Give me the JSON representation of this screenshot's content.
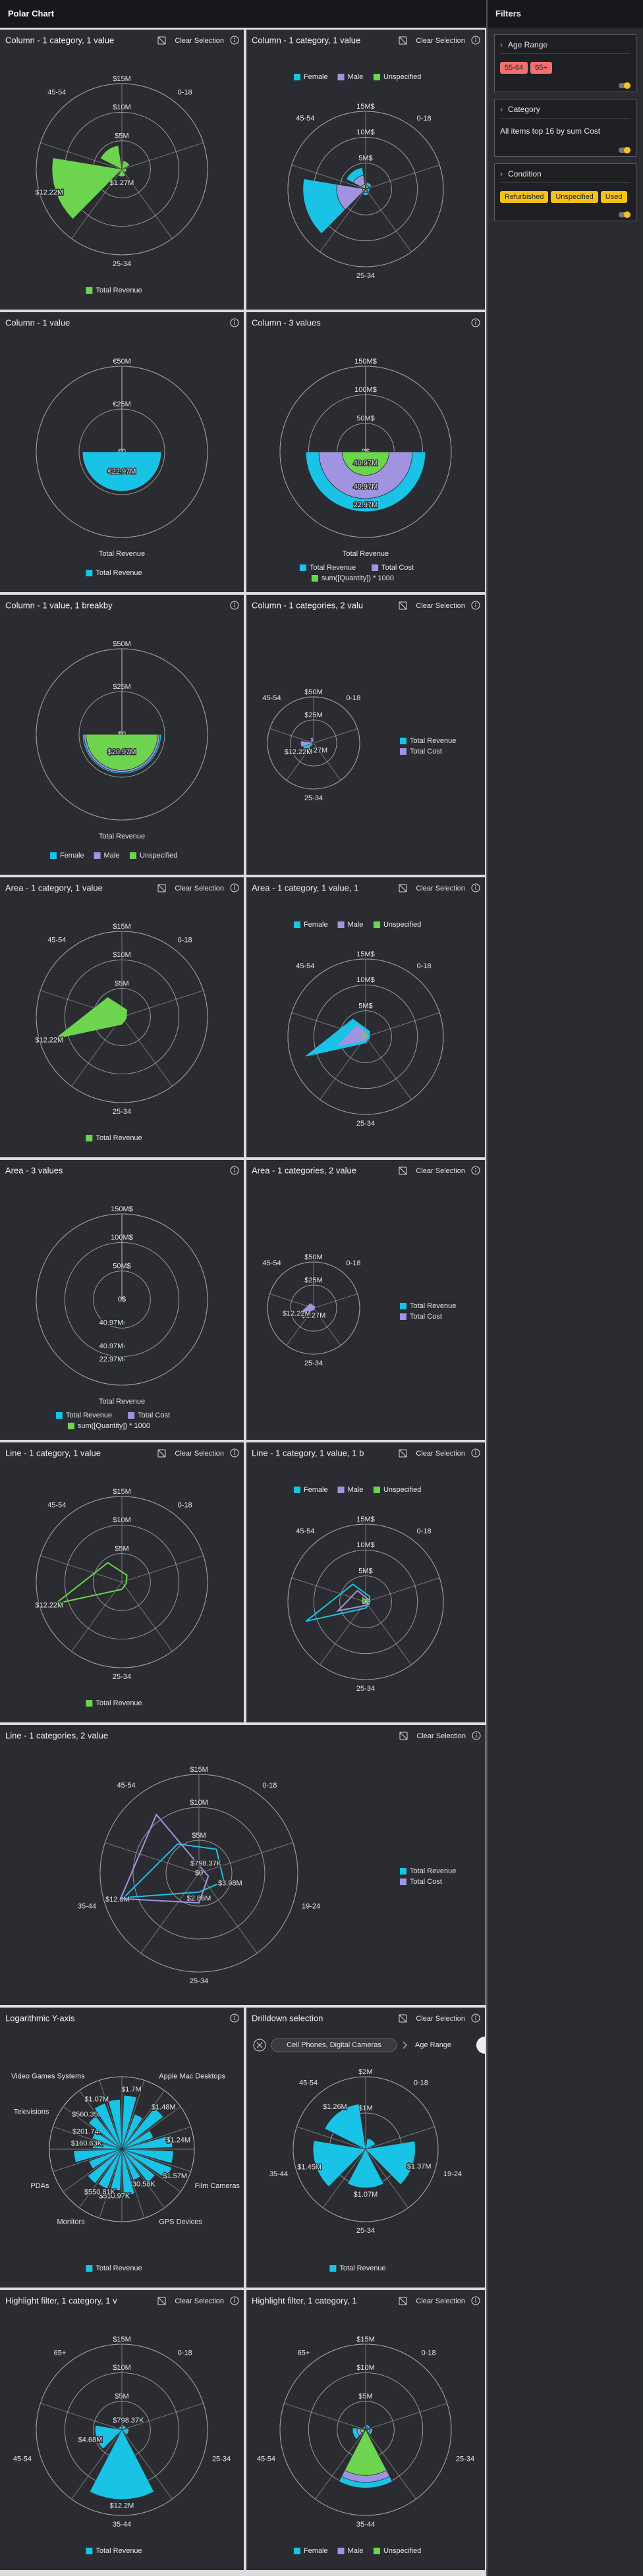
{
  "header": {
    "title": "Polar Chart"
  },
  "filters": {
    "title": "Filters",
    "panels": [
      {
        "title": "Age Range",
        "chips": [
          "55-64",
          "65+"
        ],
        "chip_color": "#f07070"
      },
      {
        "title": "Category",
        "text": "All items top 16 by sum Cost"
      },
      {
        "title": "Condition",
        "chips": [
          "Refurbished",
          "Unspecified",
          "Used"
        ],
        "chip_color": "#f5c21b"
      }
    ]
  },
  "chart_data": [
    {
      "type": "column",
      "title": "Column - 1 category, 1 value",
      "clear_selection": "Clear Selection",
      "categories": [
        "0-18",
        null,
        "25-34",
        null,
        "45-54"
      ],
      "series": [
        {
          "name": "Total Revenue",
          "color": "#6cd44f",
          "values": [
            1500000,
            800000,
            1270000,
            12220000,
            4200000
          ],
          "value_labels": [
            null,
            null,
            "$1.27M",
            "$12.22M",
            null
          ]
        }
      ],
      "ylim": [
        0,
        15000000
      ],
      "yticks": [
        {
          "value": 5000000,
          "label": "$5M"
        },
        {
          "value": 10000000,
          "label": "$10M"
        },
        {
          "value": 15000000,
          "label": "$15M"
        }
      ],
      "legend": "bottom"
    },
    {
      "type": "column",
      "stacked": true,
      "title": "Column - 1 category, 1 value",
      "clear_selection": "Clear Selection",
      "categories": [
        "0-18",
        null,
        "25-34",
        null,
        "45-54"
      ],
      "series": [
        {
          "name": "Female",
          "color": "#19c3e6",
          "values": [
            600000,
            400000,
            500000,
            6500000,
            1500000
          ]
        },
        {
          "name": "Male",
          "color": "#a094e0",
          "values": [
            500000,
            300000,
            500000,
            5000000,
            1800000
          ]
        },
        {
          "name": "Unspecified",
          "color": "#6cd44f",
          "values": [
            200000,
            100000,
            200000,
            600000,
            900000
          ]
        }
      ],
      "ylim": [
        0,
        15000000
      ],
      "yticks": [
        {
          "value": 0,
          "label": "0$"
        },
        {
          "value": 5000000,
          "label": "5M$"
        },
        {
          "value": 10000000,
          "label": "10M$"
        },
        {
          "value": 15000000,
          "label": "15M$"
        }
      ],
      "legend": "top"
    },
    {
      "type": "column",
      "half": true,
      "title": "Column - 1 value",
      "category_label": "Total Revenue",
      "series": [
        {
          "name": "Total Revenue",
          "color": "#19c3e6",
          "values": [
            22970000
          ],
          "value_labels": [
            "€22.97M"
          ]
        }
      ],
      "ylim": [
        0,
        50000000
      ],
      "yticks": [
        {
          "value": 0,
          "label": "€0"
        },
        {
          "value": 25000000,
          "label": "€25M"
        },
        {
          "value": 50000000,
          "label": "€50M"
        }
      ],
      "legend": "bottom"
    },
    {
      "type": "column",
      "half": true,
      "stacked": true,
      "title": "Column - 3 values",
      "category_label": "Total Revenue",
      "series": [
        {
          "name": "Total Revenue",
          "color": "#19c3e6",
          "values": [
            22970000
          ],
          "value_labels": [
            "22.97M"
          ]
        },
        {
          "name": "Total Cost",
          "color": "#a094e0",
          "values": [
            40970000
          ],
          "value_labels": [
            "40.97M"
          ]
        },
        {
          "name": "sum([Quantity]) * 1000",
          "color": "#6cd44f",
          "values": [
            40970000
          ],
          "value_labels": [
            "40.97M"
          ]
        }
      ],
      "ylim": [
        0,
        150000000
      ],
      "yticks": [
        {
          "value": 0,
          "label": "0$"
        },
        {
          "value": 50000000,
          "label": "50M$"
        },
        {
          "value": 100000000,
          "label": "100M$"
        },
        {
          "value": 150000000,
          "label": "150M$"
        }
      ],
      "legend": "bottom"
    },
    {
      "type": "column",
      "half": true,
      "stacked": true,
      "title": "Column - 1 value, 1 breakby",
      "category_label": "Total Revenue",
      "series": [
        {
          "name": "Female",
          "color": "#19c3e6",
          "values": [
            800000
          ]
        },
        {
          "name": "Male",
          "color": "#a094e0",
          "values": [
            1200000
          ]
        },
        {
          "name": "Unspecified",
          "color": "#6cd44f",
          "values": [
            20970000
          ],
          "value_labels": [
            "$20.97M"
          ]
        }
      ],
      "ylim": [
        0,
        50000000
      ],
      "yticks": [
        {
          "value": 0,
          "label": "$0"
        },
        {
          "value": 25000000,
          "label": "$25M"
        },
        {
          "value": 50000000,
          "label": "$50M"
        }
      ],
      "legend": "bottom"
    },
    {
      "type": "column",
      "title": "Column - 1 categories, 2 valu",
      "clear_selection": "Clear Selection",
      "categories": [
        "0-18",
        null,
        "25-34",
        null,
        "45-54"
      ],
      "series": [
        {
          "name": "Total Revenue",
          "color": "#19c3e6",
          "values": [
            1500000,
            800000,
            1270000,
            12220000,
            4200000
          ],
          "value_labels": [
            null,
            null,
            "$1.27M",
            "$12.22M",
            null
          ]
        },
        {
          "name": "Total Cost",
          "color": "#a094e0",
          "values": [
            2000000,
            1000000,
            2000000,
            14000000,
            6000000
          ]
        }
      ],
      "ylim": [
        0,
        50000000
      ],
      "yticks": [
        {
          "value": 25000000,
          "label": "$25M"
        },
        {
          "value": 50000000,
          "label": "$50M"
        }
      ],
      "legend": "right"
    },
    {
      "type": "area",
      "title": "Area - 1 category, 1 value",
      "clear_selection": "Clear Selection",
      "categories": [
        "0-18",
        null,
        "25-34",
        null,
        "45-54"
      ],
      "series": [
        {
          "name": "Total Revenue",
          "color": "#6cd44f",
          "values": [
            1500000,
            800000,
            1270000,
            12220000,
            4200000
          ],
          "value_labels": [
            null,
            null,
            null,
            "$12.22M",
            null
          ]
        }
      ],
      "ylim": [
        0,
        15000000
      ],
      "yticks": [
        {
          "value": 5000000,
          "label": "$5M"
        },
        {
          "value": 10000000,
          "label": "$10M"
        },
        {
          "value": 15000000,
          "label": "$15M"
        }
      ],
      "legend": "bottom"
    },
    {
      "type": "area",
      "stacked": true,
      "title": "Area - 1 category, 1 value, 1",
      "clear_selection": "Clear Selection",
      "categories": [
        "0-18",
        null,
        "25-34",
        null,
        "45-54"
      ],
      "series": [
        {
          "name": "Female",
          "color": "#19c3e6",
          "values": [
            600000,
            400000,
            500000,
            6500000,
            1500000
          ]
        },
        {
          "name": "Male",
          "color": "#a094e0",
          "values": [
            500000,
            300000,
            500000,
            5000000,
            1800000
          ]
        },
        {
          "name": "Unspecified",
          "color": "#6cd44f",
          "values": [
            200000,
            100000,
            200000,
            600000,
            900000
          ]
        }
      ],
      "ylim": [
        0,
        15000000
      ],
      "yticks": [
        {
          "value": 0,
          "label": "0$"
        },
        {
          "value": 5000000,
          "label": "5M$"
        },
        {
          "value": 10000000,
          "label": "10M$"
        },
        {
          "value": 15000000,
          "label": "15M$"
        }
      ],
      "legend": "top"
    },
    {
      "type": "area",
      "half": true,
      "stacked": true,
      "title": "Area - 3 values",
      "category_label": "Total Revenue",
      "series": [
        {
          "name": "Total Revenue",
          "color": "#19c3e6",
          "values": [
            22970000
          ],
          "value_labels": [
            "22.97M"
          ]
        },
        {
          "name": "Total Cost",
          "color": "#a094e0",
          "values": [
            40970000
          ],
          "value_labels": [
            "40.97M"
          ]
        },
        {
          "name": "sum([Quantity]) * 1000",
          "color": "#6cd44f",
          "values": [
            40970000
          ],
          "value_labels": [
            "40.97M"
          ]
        }
      ],
      "ylim": [
        0,
        150000000
      ],
      "yticks": [
        {
          "value": 0,
          "label": "0$"
        },
        {
          "value": 50000000,
          "label": "50M$"
        },
        {
          "value": 100000000,
          "label": "100M$"
        },
        {
          "value": 150000000,
          "label": "150M$"
        }
      ],
      "legend": "bottom"
    },
    {
      "type": "area",
      "title": "Area - 1 categories, 2 value",
      "clear_selection": "Clear Selection",
      "categories": [
        "0-18",
        null,
        "25-34",
        null,
        "45-54"
      ],
      "series": [
        {
          "name": "Total Revenue",
          "color": "#19c3e6",
          "values": [
            1500000,
            800000,
            1270000,
            12220000,
            4200000
          ],
          "value_labels": [
            null,
            null,
            "$1.27M",
            "$12.22M",
            null
          ]
        },
        {
          "name": "Total Cost",
          "color": "#a094e0",
          "values": [
            2000000,
            1000000,
            2000000,
            14000000,
            6000000
          ]
        }
      ],
      "ylim": [
        0,
        50000000
      ],
      "yticks": [
        {
          "value": 25000000,
          "label": "$25M"
        },
        {
          "value": 50000000,
          "label": "$50M"
        }
      ],
      "legend": "right"
    },
    {
      "type": "line",
      "title": "Line - 1 category, 1 value",
      "clear_selection": "Clear Selection",
      "categories": [
        "0-18",
        null,
        "25-34",
        null,
        "45-54"
      ],
      "series": [
        {
          "name": "Total Revenue",
          "color": "#6cd44f",
          "values": [
            1500000,
            800000,
            1270000,
            12220000,
            4200000
          ],
          "value_labels": [
            null,
            null,
            null,
            "$12.22M",
            null
          ]
        }
      ],
      "ylim": [
        0,
        15000000
      ],
      "yticks": [
        {
          "value": 5000000,
          "label": "$5M"
        },
        {
          "value": 10000000,
          "label": "$10M"
        },
        {
          "value": 15000000,
          "label": "$15M"
        }
      ],
      "legend": "bottom"
    },
    {
      "type": "line",
      "stacked": true,
      "title": "Line - 1 category, 1 value, 1 b",
      "clear_selection": "Clear Selection",
      "categories": [
        "0-18",
        null,
        "25-34",
        null,
        "45-54"
      ],
      "series": [
        {
          "name": "Female",
          "color": "#19c3e6",
          "values": [
            600000,
            400000,
            500000,
            6500000,
            1500000
          ]
        },
        {
          "name": "Male",
          "color": "#a094e0",
          "values": [
            500000,
            300000,
            500000,
            5000000,
            1800000
          ]
        },
        {
          "name": "Unspecified",
          "color": "#6cd44f",
          "values": [
            200000,
            100000,
            200000,
            600000,
            900000
          ]
        }
      ],
      "ylim": [
        0,
        15000000
      ],
      "yticks": [
        {
          "value": 0,
          "label": "0$"
        },
        {
          "value": 5000000,
          "label": "5M$"
        },
        {
          "value": 10000000,
          "label": "10M$"
        },
        {
          "value": 15000000,
          "label": "15M$"
        }
      ],
      "legend": "top"
    },
    {
      "type": "line",
      "title": "Line - 1 categories, 2 value",
      "clear_selection": "Clear Selection",
      "categories": [
        "0-18",
        "19-24",
        "25-34",
        "35-44",
        "45-54"
      ],
      "series": [
        {
          "name": "Total Revenue",
          "color": "#19c3e6",
          "values": [
            4500000,
            3980000,
            2860000,
            12000000,
            5500000
          ],
          "value_labels": [
            null,
            "$3.98M",
            "$2.86M",
            "$12.0M",
            null
          ]
        },
        {
          "name": "Total Cost",
          "color": "#a094e0",
          "values": [
            798370,
            1500000,
            4500000,
            12500000,
            11000000
          ],
          "value_labels": [
            "$798.37K",
            null,
            null,
            null,
            null
          ]
        }
      ],
      "ylim": [
        0,
        15000000
      ],
      "yticks": [
        {
          "value": 0,
          "label": "$0"
        },
        {
          "value": 5000000,
          "label": "$5M"
        },
        {
          "value": 10000000,
          "label": "$10M"
        },
        {
          "value": 15000000,
          "label": "$15M"
        }
      ],
      "legend": "right"
    },
    {
      "type": "column",
      "log": true,
      "title": "Logarithmic Y-axis",
      "categories": [
        null,
        "Apple Mac Desktops",
        null,
        null,
        null,
        null,
        "Film Cameras",
        null,
        "GPS Devices",
        null,
        null,
        "Monitors",
        null,
        "PDAs",
        null,
        null,
        "Televisions",
        null,
        "Video Games Systems",
        null
      ],
      "series": [
        {
          "name": "Total Revenue",
          "color": "#19c3e6",
          "values": [
            1700000,
            350000,
            1480000,
            240000,
            1240000,
            1370000,
            1570000,
            550000,
            230580,
            810000,
            510970,
            550810,
            620000,
            280000,
            980000,
            160630,
            201740,
            560350,
            1070000,
            1150000
          ],
          "value_labels": [
            "$1.7M",
            null,
            "$1.48M",
            null,
            "$1.24M",
            null,
            "$1.57M",
            null,
            "$230.58K",
            null,
            "$510.97K",
            "$550.81K",
            null,
            null,
            null,
            "$160.63K",
            "$201.74K",
            "$560.35K",
            "$1.07M",
            null
          ]
        }
      ],
      "ylim": [
        10000,
        10000000
      ],
      "legend": "bottom"
    },
    {
      "type": "column",
      "title": "Drilldown selection",
      "clear_selection": "Clear Selection",
      "breadcrumb": [
        "Cell Phones, Digital Cameras",
        "Age Range"
      ],
      "categories": [
        "0-18",
        "19-24",
        "25-34",
        "35-44",
        "45-54"
      ],
      "series": [
        {
          "name": "Total Revenue",
          "color": "#19c3e6",
          "values": [
            300000,
            1370000,
            1070000,
            1450000,
            1260000
          ],
          "value_labels": [
            null,
            "$1.37M",
            "$1.07M",
            "$1.45M",
            "$1.26M"
          ]
        }
      ],
      "ylim": [
        0,
        2000000
      ],
      "yticks": [
        {
          "value": 1000000,
          "label": "$1M"
        },
        {
          "value": 2000000,
          "label": "$2M"
        }
      ],
      "legend": "bottom"
    },
    {
      "type": "column",
      "title": "Highlight filter, 1 category, 1 v",
      "clear_selection": "Clear Selection",
      "categories": [
        "0-18",
        "25-34",
        "35-44",
        "45-54",
        "65+"
      ],
      "series": [
        {
          "name": "Total Revenue",
          "color": "#19c3e6",
          "values": [
            798370,
            1200000,
            12200000,
            4680000,
            600000
          ],
          "value_labels": [
            "$798.37K",
            null,
            "$12.2M",
            "$4.68M",
            null
          ]
        }
      ],
      "ylim": [
        0,
        15000000
      ],
      "yticks": [
        {
          "value": 5000000,
          "label": "$5M"
        },
        {
          "value": 10000000,
          "label": "$10M"
        },
        {
          "value": 15000000,
          "label": "$15M"
        }
      ],
      "legend": "bottom"
    },
    {
      "type": "column",
      "stacked": true,
      "title": "Highlight filter, 1 category, 1",
      "clear_selection": "Clear Selection",
      "categories": [
        "0-18",
        "25-34",
        "35-44",
        "45-54",
        "65+"
      ],
      "series": [
        {
          "name": "Female",
          "color": "#19c3e6",
          "values": [
            400000,
            500000,
            1000000,
            800000,
            300000
          ]
        },
        {
          "name": "Male",
          "color": "#a094e0",
          "values": [
            300000,
            400000,
            1200000,
            600000,
            200000
          ]
        },
        {
          "name": "Unspecified",
          "color": "#6cd44f",
          "values": [
            200000,
            300000,
            8000000,
            900000,
            100000
          ]
        }
      ],
      "ylim": [
        0,
        15000000
      ],
      "yticks": [
        {
          "value": 5000000,
          "label": "$5M"
        },
        {
          "value": 10000000,
          "label": "$10M"
        },
        {
          "value": 15000000,
          "label": "$15M"
        }
      ],
      "legend": "bottom"
    }
  ]
}
